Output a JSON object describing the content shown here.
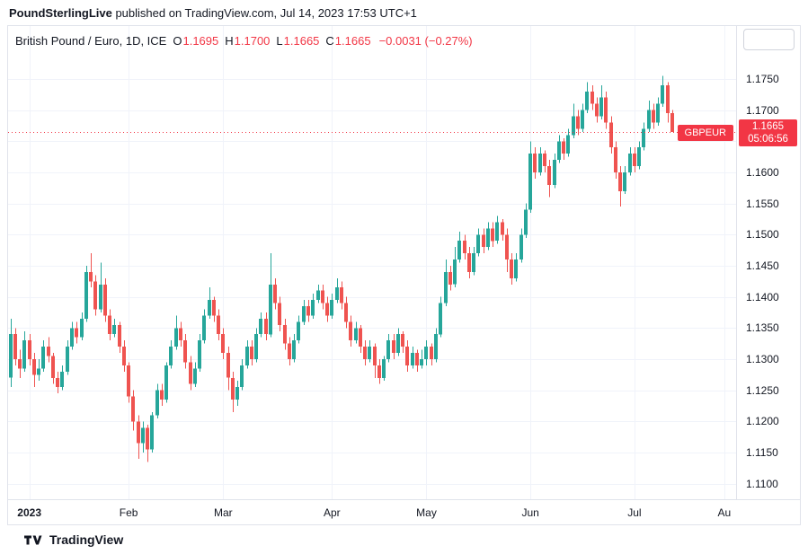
{
  "header": {
    "publisher": "PoundSterlingLive",
    "suffix": " published on TradingView.com, Jul 14, 2023 17:53 UTC+1"
  },
  "legend": {
    "title": "British Pound / Euro, 1D, ICE",
    "o_label": "O",
    "o": "1.1695",
    "h_label": "H",
    "h": "1.1700",
    "l_label": "L",
    "l": "1.1665",
    "c_label": "C",
    "c": "1.1665",
    "change": "−0.0031 (−0.27%)"
  },
  "price_line": {
    "symbol_badge": "GBPEUR",
    "price": "1.1665",
    "countdown": "05:06:56",
    "value": 1.1665
  },
  "colors": {
    "up": "#26a69a",
    "down": "#ef5350",
    "accent_red": "#f23645",
    "grid": "#f0f3fa",
    "border": "#e0e3eb",
    "text": "#131722"
  },
  "footer": {
    "brand": "TradingView",
    "logo_icon": "tradingview-logo"
  },
  "chart_data": {
    "type": "candlestick",
    "title": "British Pound / Euro",
    "symbol": "GBPEUR",
    "timeframe": "1D",
    "exchange": "ICE",
    "last": {
      "o": 1.1695,
      "h": 1.17,
      "l": 1.1665,
      "c": 1.1665,
      "change": -0.0031,
      "change_pct": -0.27
    },
    "ylim": [
      1.1075,
      1.1835
    ],
    "slots": 154,
    "y_ticks": [
      "1.1750",
      "1.1700",
      "1.1600",
      "1.1550",
      "1.1500",
      "1.1450",
      "1.1400",
      "1.1350",
      "1.1300",
      "1.1250",
      "1.1200",
      "1.1150",
      "1.1100"
    ],
    "grid_prices": [
      1.11,
      1.115,
      1.12,
      1.125,
      1.13,
      1.135,
      1.14,
      1.145,
      1.15,
      1.155,
      1.16,
      1.165,
      1.17,
      1.175
    ],
    "x_ticks": [
      {
        "label": "2023",
        "index": 4,
        "bold": true
      },
      {
        "label": "Feb",
        "index": 25
      },
      {
        "label": "Mar",
        "index": 45
      },
      {
        "label": "Apr",
        "index": 68
      },
      {
        "label": "May",
        "index": 88
      },
      {
        "label": "Jun",
        "index": 110
      },
      {
        "label": "Jul",
        "index": 132
      },
      {
        "label": "Au",
        "index": 151
      }
    ],
    "candles": [
      [
        1.127,
        1.1365,
        1.1255,
        1.134
      ],
      [
        1.134,
        1.135,
        1.129,
        1.13
      ],
      [
        1.13,
        1.1315,
        1.127,
        1.1285
      ],
      [
        1.1285,
        1.1345,
        1.128,
        1.133
      ],
      [
        1.133,
        1.134,
        1.129,
        1.13
      ],
      [
        1.13,
        1.131,
        1.1255,
        1.1275
      ],
      [
        1.1275,
        1.13,
        1.1265,
        1.1285
      ],
      [
        1.1285,
        1.133,
        1.128,
        1.132
      ],
      [
        1.132,
        1.1335,
        1.1295,
        1.1305
      ],
      [
        1.1305,
        1.131,
        1.126,
        1.127
      ],
      [
        1.127,
        1.128,
        1.1245,
        1.1255
      ],
      [
        1.1255,
        1.129,
        1.125,
        1.128
      ],
      [
        1.128,
        1.133,
        1.1275,
        1.132
      ],
      [
        1.132,
        1.136,
        1.1315,
        1.135
      ],
      [
        1.135,
        1.136,
        1.1325,
        1.1335
      ],
      [
        1.1335,
        1.1375,
        1.133,
        1.1365
      ],
      [
        1.1365,
        1.145,
        1.136,
        1.144
      ],
      [
        1.144,
        1.147,
        1.1415,
        1.1425
      ],
      [
        1.1425,
        1.1435,
        1.137,
        1.138
      ],
      [
        1.138,
        1.1455,
        1.1375,
        1.142
      ],
      [
        1.142,
        1.143,
        1.136,
        1.137
      ],
      [
        1.137,
        1.138,
        1.133,
        1.134
      ],
      [
        1.134,
        1.1365,
        1.1335,
        1.1355
      ],
      [
        1.1355,
        1.136,
        1.131,
        1.132
      ],
      [
        1.132,
        1.133,
        1.128,
        1.129
      ],
      [
        1.129,
        1.1295,
        1.123,
        1.124
      ],
      [
        1.124,
        1.125,
        1.1185,
        1.12
      ],
      [
        1.12,
        1.121,
        1.114,
        1.1165
      ],
      [
        1.1165,
        1.12,
        1.115,
        1.119
      ],
      [
        1.119,
        1.1195,
        1.1135,
        1.1155
      ],
      [
        1.1155,
        1.1215,
        1.115,
        1.121
      ],
      [
        1.121,
        1.126,
        1.1205,
        1.125
      ],
      [
        1.125,
        1.126,
        1.1225,
        1.1235
      ],
      [
        1.1235,
        1.1295,
        1.123,
        1.129
      ],
      [
        1.129,
        1.133,
        1.1285,
        1.132
      ],
      [
        1.132,
        1.137,
        1.1315,
        1.135
      ],
      [
        1.135,
        1.136,
        1.132,
        1.133
      ],
      [
        1.133,
        1.134,
        1.1285,
        1.1295
      ],
      [
        1.1295,
        1.1305,
        1.125,
        1.126
      ],
      [
        1.126,
        1.1295,
        1.1255,
        1.1285
      ],
      [
        1.1285,
        1.134,
        1.128,
        1.133
      ],
      [
        1.133,
        1.138,
        1.1325,
        1.137
      ],
      [
        1.137,
        1.1415,
        1.1365,
        1.1395
      ],
      [
        1.1395,
        1.14,
        1.136,
        1.137
      ],
      [
        1.137,
        1.138,
        1.133,
        1.134
      ],
      [
        1.134,
        1.135,
        1.13,
        1.131
      ],
      [
        1.131,
        1.132,
        1.125,
        1.127
      ],
      [
        1.127,
        1.128,
        1.1215,
        1.1235
      ],
      [
        1.1235,
        1.1265,
        1.1225,
        1.1255
      ],
      [
        1.1255,
        1.13,
        1.125,
        1.129
      ],
      [
        1.129,
        1.133,
        1.1285,
        1.132
      ],
      [
        1.132,
        1.133,
        1.129,
        1.13
      ],
      [
        1.13,
        1.135,
        1.1295,
        1.134
      ],
      [
        1.134,
        1.1375,
        1.1335,
        1.1365
      ],
      [
        1.1365,
        1.1375,
        1.133,
        1.134
      ],
      [
        1.134,
        1.147,
        1.1335,
        1.142
      ],
      [
        1.142,
        1.143,
        1.138,
        1.139
      ],
      [
        1.139,
        1.14,
        1.1345,
        1.1355
      ],
      [
        1.1355,
        1.1365,
        1.1315,
        1.1325
      ],
      [
        1.1325,
        1.1335,
        1.129,
        1.13
      ],
      [
        1.13,
        1.134,
        1.1295,
        1.133
      ],
      [
        1.133,
        1.137,
        1.1325,
        1.136
      ],
      [
        1.136,
        1.1395,
        1.1355,
        1.1385
      ],
      [
        1.1385,
        1.1395,
        1.136,
        1.137
      ],
      [
        1.137,
        1.1405,
        1.1365,
        1.1395
      ],
      [
        1.1395,
        1.142,
        1.139,
        1.141
      ],
      [
        1.141,
        1.142,
        1.138,
        1.139
      ],
      [
        1.139,
        1.14,
        1.136,
        1.137
      ],
      [
        1.137,
        1.1405,
        1.1365,
        1.1395
      ],
      [
        1.1395,
        1.143,
        1.139,
        1.1415
      ],
      [
        1.1415,
        1.1425,
        1.138,
        1.139
      ],
      [
        1.139,
        1.14,
        1.135,
        1.136
      ],
      [
        1.136,
        1.137,
        1.132,
        1.133
      ],
      [
        1.133,
        1.136,
        1.1325,
        1.135
      ],
      [
        1.135,
        1.1355,
        1.131,
        1.132
      ],
      [
        1.132,
        1.133,
        1.129,
        1.13
      ],
      [
        1.13,
        1.133,
        1.1295,
        1.132
      ],
      [
        1.132,
        1.1325,
        1.127,
        1.129
      ],
      [
        1.129,
        1.13,
        1.126,
        1.127
      ],
      [
        1.127,
        1.1305,
        1.1265,
        1.13
      ],
      [
        1.13,
        1.134,
        1.1295,
        1.133
      ],
      [
        1.133,
        1.134,
        1.13,
        1.131
      ],
      [
        1.131,
        1.135,
        1.1305,
        1.134
      ],
      [
        1.134,
        1.1345,
        1.131,
        1.132
      ],
      [
        1.132,
        1.133,
        1.128,
        1.129
      ],
      [
        1.129,
        1.132,
        1.1285,
        1.131
      ],
      [
        1.131,
        1.1315,
        1.128,
        1.129
      ],
      [
        1.129,
        1.1315,
        1.1285,
        1.13
      ],
      [
        1.13,
        1.133,
        1.129,
        1.132
      ],
      [
        1.132,
        1.1325,
        1.129,
        1.13
      ],
      [
        1.13,
        1.135,
        1.1295,
        1.134
      ],
      [
        1.134,
        1.14,
        1.1335,
        1.139
      ],
      [
        1.139,
        1.146,
        1.1385,
        1.144
      ],
      [
        1.144,
        1.145,
        1.141,
        1.142
      ],
      [
        1.142,
        1.148,
        1.1415,
        1.146
      ],
      [
        1.146,
        1.1505,
        1.1455,
        1.149
      ],
      [
        1.149,
        1.15,
        1.146,
        1.147
      ],
      [
        1.147,
        1.148,
        1.143,
        1.144
      ],
      [
        1.144,
        1.148,
        1.1435,
        1.147
      ],
      [
        1.147,
        1.151,
        1.1465,
        1.15
      ],
      [
        1.15,
        1.151,
        1.147,
        1.148
      ],
      [
        1.148,
        1.152,
        1.1475,
        1.151
      ],
      [
        1.151,
        1.152,
        1.148,
        1.149
      ],
      [
        1.149,
        1.153,
        1.1485,
        1.152
      ],
      [
        1.152,
        1.1525,
        1.149,
        1.15
      ],
      [
        1.15,
        1.151,
        1.144,
        1.146
      ],
      [
        1.146,
        1.147,
        1.142,
        1.143
      ],
      [
        1.143,
        1.147,
        1.1425,
        1.146
      ],
      [
        1.146,
        1.151,
        1.1455,
        1.15
      ],
      [
        1.15,
        1.155,
        1.1495,
        1.154
      ],
      [
        1.154,
        1.165,
        1.1535,
        1.163
      ],
      [
        1.163,
        1.164,
        1.159,
        1.16
      ],
      [
        1.16,
        1.164,
        1.1595,
        1.163
      ],
      [
        1.163,
        1.1635,
        1.16,
        1.161
      ],
      [
        1.161,
        1.162,
        1.156,
        1.158
      ],
      [
        1.158,
        1.163,
        1.1575,
        1.162
      ],
      [
        1.162,
        1.166,
        1.1615,
        1.165
      ],
      [
        1.165,
        1.1655,
        1.162,
        1.163
      ],
      [
        1.163,
        1.167,
        1.1625,
        1.166
      ],
      [
        1.166,
        1.171,
        1.1655,
        1.169
      ],
      [
        1.169,
        1.17,
        1.166,
        1.167
      ],
      [
        1.167,
        1.171,
        1.1665,
        1.17
      ],
      [
        1.17,
        1.1745,
        1.1695,
        1.173
      ],
      [
        1.173,
        1.174,
        1.17,
        1.171
      ],
      [
        1.171,
        1.172,
        1.168,
        1.169
      ],
      [
        1.169,
        1.174,
        1.1685,
        1.172
      ],
      [
        1.172,
        1.173,
        1.167,
        1.168
      ],
      [
        1.168,
        1.169,
        1.163,
        1.164
      ],
      [
        1.164,
        1.165,
        1.159,
        1.16
      ],
      [
        1.16,
        1.161,
        1.1545,
        1.157
      ],
      [
        1.157,
        1.161,
        1.1565,
        1.16
      ],
      [
        1.16,
        1.164,
        1.1595,
        1.163
      ],
      [
        1.163,
        1.164,
        1.16,
        1.161
      ],
      [
        1.161,
        1.165,
        1.1605,
        1.164
      ],
      [
        1.164,
        1.168,
        1.1635,
        1.167
      ],
      [
        1.167,
        1.1715,
        1.1665,
        1.17
      ],
      [
        1.17,
        1.171,
        1.167,
        1.168
      ],
      [
        1.168,
        1.172,
        1.1675,
        1.171
      ],
      [
        1.171,
        1.1755,
        1.1705,
        1.174
      ],
      [
        1.174,
        1.1745,
        1.168,
        1.1695
      ],
      [
        1.1695,
        1.17,
        1.1665,
        1.1665
      ]
    ]
  }
}
